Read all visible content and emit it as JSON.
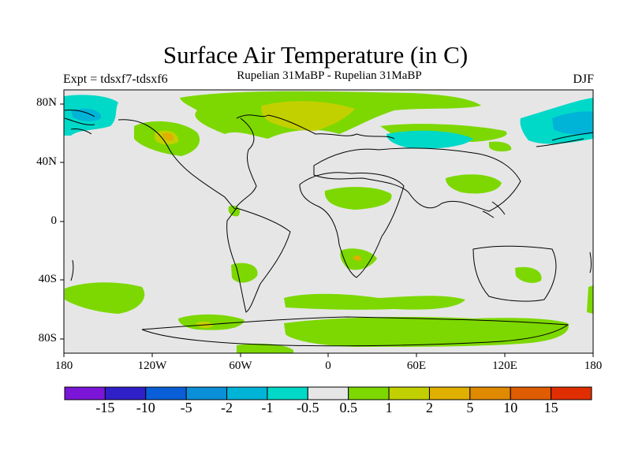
{
  "map": {
    "title": "Surface Air Temperature (in C)",
    "left_label": "Expt = tdsxf7-tdsxf6",
    "center_label": "Rupelian  31MaBP - Rupelian  31MaBP",
    "right_label": "DJF",
    "projection": "cylindrical equidistant",
    "lon_ticks": [
      "180",
      "120W",
      "60W",
      "0",
      "60E",
      "120E",
      "180"
    ],
    "lat_ticks": [
      "80N",
      "40N",
      "0",
      "40S",
      "80S"
    ],
    "background_color": "#e6e6e6",
    "coastline_color": "#000000"
  },
  "colorbar": {
    "labels": [
      "-15",
      "-10",
      "-5",
      "-2",
      "-1",
      "-0.5",
      "0.5",
      "1",
      "2",
      "5",
      "10",
      "15"
    ],
    "colors": [
      "#7b16d8",
      "#3020c8",
      "#0a5fd8",
      "#0a90d8",
      "#00b4d8",
      "#00d8c8",
      "#e6e6e6",
      "#7cd800",
      "#c2d000",
      "#e0b000",
      "#e08a00",
      "#e05c00",
      "#e02e00"
    ]
  }
}
